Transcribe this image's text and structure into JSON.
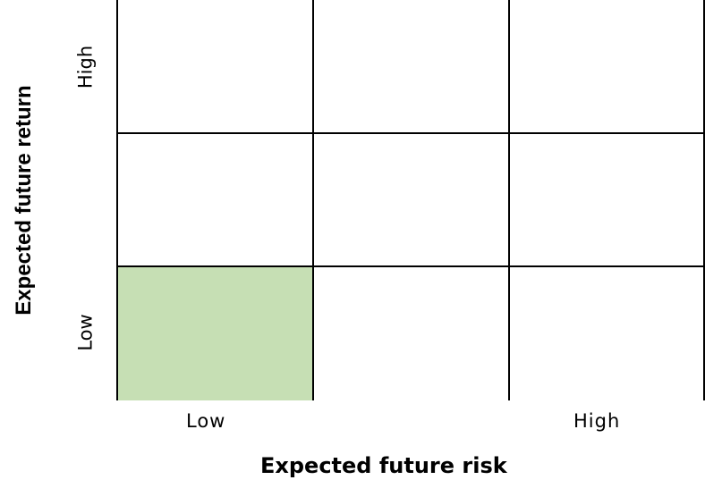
{
  "axes": {
    "x_title": "Expected future risk",
    "y_title": "Expected future return",
    "x_ticks": {
      "low": "Low",
      "high": "High"
    },
    "y_ticks": {
      "low": "Low",
      "high": "High"
    }
  },
  "matrix": {
    "rows": 3,
    "columns": 3,
    "highlighted_cell": {
      "risk": "Low",
      "return": "Low"
    },
    "highlight_color": "#c6dfb4"
  }
}
